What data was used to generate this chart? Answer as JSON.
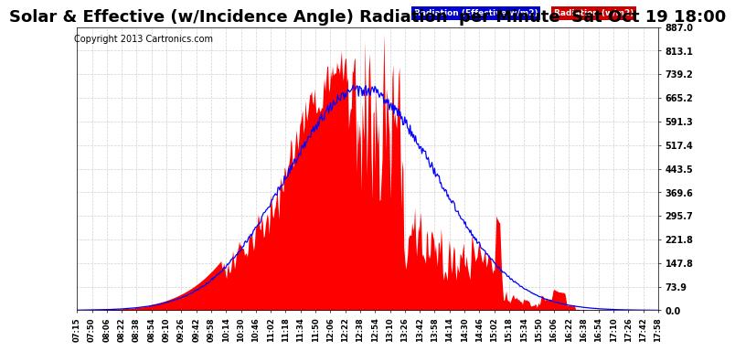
{
  "title": "Solar & Effective (w/Incidence Angle) Radiation  per Minute  Sat Oct 19 18:00",
  "copyright": "Copyright 2013 Cartronics.com",
  "yticks": [
    0.0,
    73.9,
    147.8,
    221.8,
    295.7,
    369.6,
    443.5,
    517.4,
    591.3,
    665.2,
    739.2,
    813.1,
    887.0
  ],
  "ytick_labels": [
    "0.0",
    "73.9",
    "147.8",
    "221.8",
    "295.7",
    "369.6",
    "443.5",
    "517.4",
    "591.3",
    "665.2",
    "739.2",
    "813.1",
    "887.0"
  ],
  "ymax": 887.0,
  "ymin": 0.0,
  "legend_items": [
    {
      "label": "Radiation (Effective w/m2)",
      "color": "#0000ff"
    },
    {
      "label": "Radiation (w/m2)",
      "color": "#ff0000"
    }
  ],
  "bg_color": "#ffffff",
  "grid_color": "#cccccc",
  "fill_color": "#ff0000",
  "line_color": "#0000ff",
  "title_fontsize": 13,
  "copyright_fontsize": 7,
  "xtick_labels": [
    "07:15",
    "07:50",
    "08:06",
    "08:22",
    "08:38",
    "08:54",
    "09:10",
    "09:26",
    "09:42",
    "09:58",
    "10:14",
    "10:30",
    "10:46",
    "11:02",
    "11:18",
    "11:34",
    "11:50",
    "12:06",
    "12:22",
    "12:38",
    "12:54",
    "13:10",
    "13:26",
    "13:42",
    "13:58",
    "14:14",
    "14:30",
    "14:46",
    "15:02",
    "15:18",
    "15:34",
    "15:50",
    "16:06",
    "16:22",
    "16:38",
    "16:54",
    "17:10",
    "17:26",
    "17:42",
    "17:58"
  ]
}
